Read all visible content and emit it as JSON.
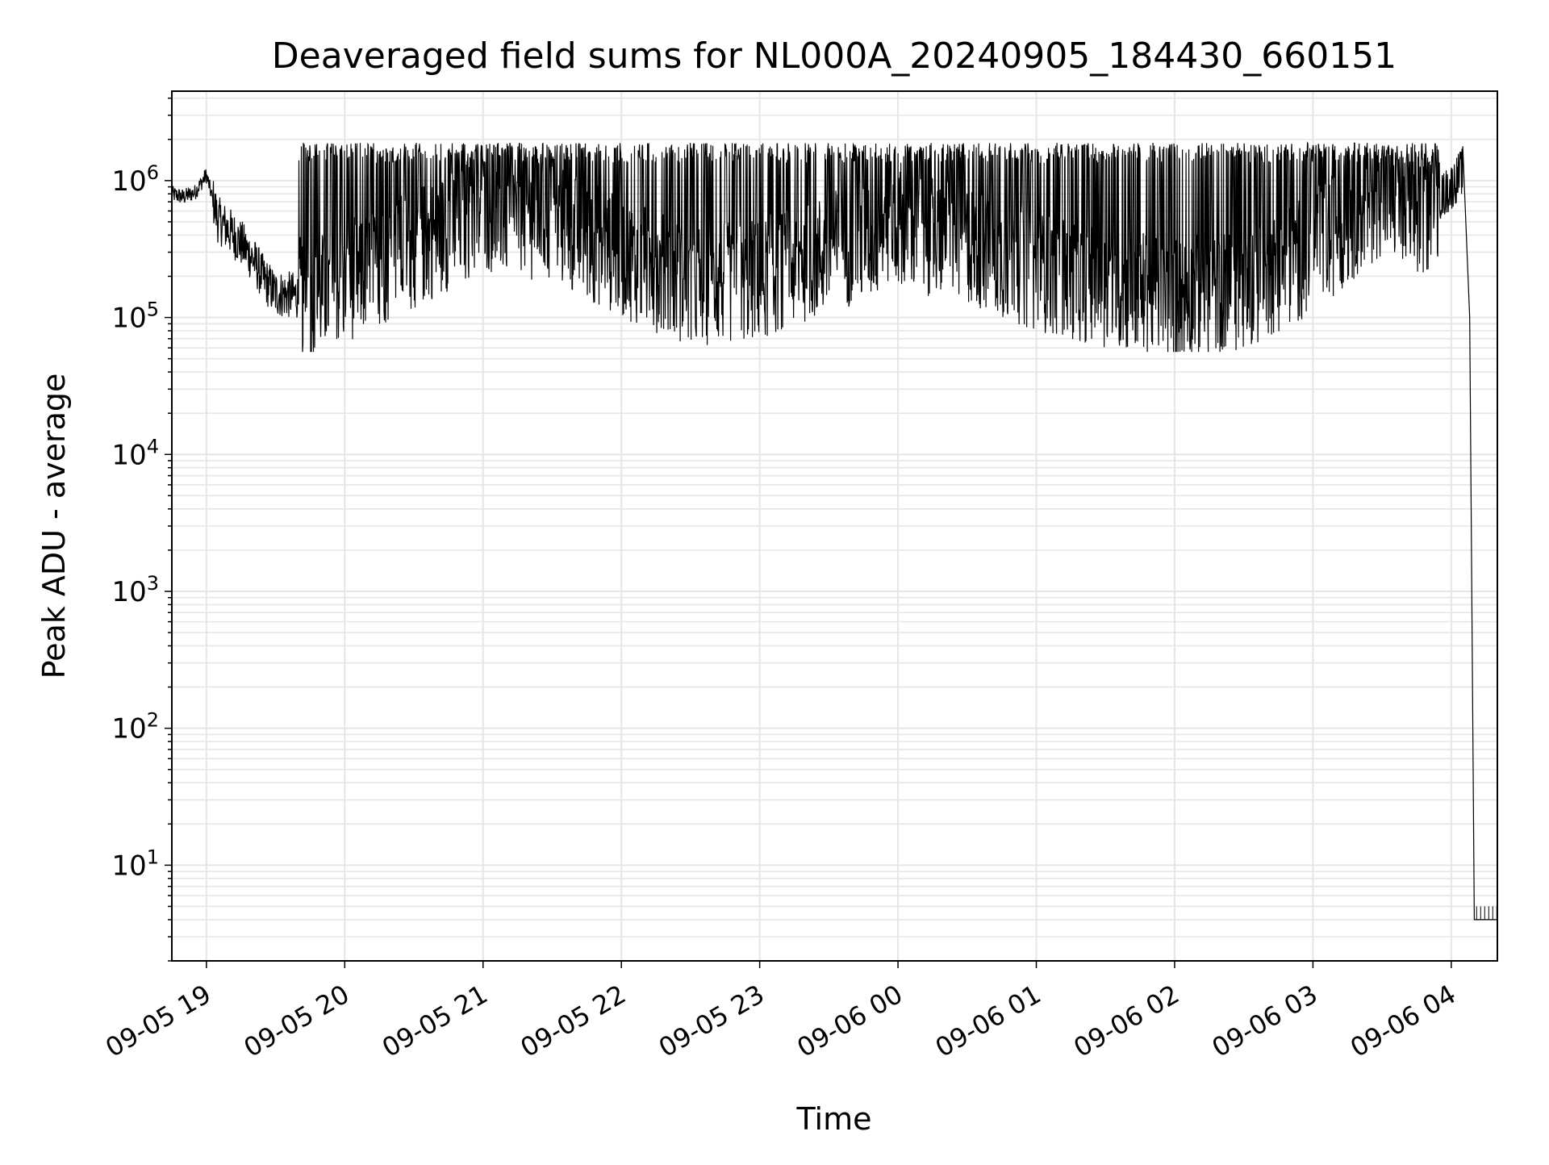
{
  "chart_data": {
    "type": "line",
    "title": "Deaveraged field sums for NL000A_20240905_184430_660151",
    "xlabel": "Time",
    "ylabel": "Peak ADU - average",
    "yscale": "log",
    "ylim": [
      2,
      4500000
    ],
    "xlim": [
      "2024-09-05 18:45",
      "2024-09-06 04:20"
    ],
    "grid": "major and minor, light gray",
    "legend": "none",
    "line_color": "#000000",
    "x_ticks": [
      "09-05 19",
      "09-05 20",
      "09-05 21",
      "09-05 22",
      "09-05 23",
      "09-06 00",
      "09-06 01",
      "09-06 02",
      "09-06 03",
      "09-06 04"
    ],
    "y_ticks": [
      {
        "value": 10,
        "base": "10",
        "exp": "1"
      },
      {
        "value": 100,
        "base": "10",
        "exp": "2"
      },
      {
        "value": 1000,
        "base": "10",
        "exp": "3"
      },
      {
        "value": 10000,
        "base": "10",
        "exp": "4"
      },
      {
        "value": 100000,
        "base": "10",
        "exp": "5"
      },
      {
        "value": 1000000,
        "base": "10",
        "exp": "6"
      }
    ],
    "series": [
      {
        "style": "dense noisy trace (approximated envelope points)",
        "points": [
          [
            "2024-09-05 18:45",
            800000
          ],
          [
            "2024-09-05 18:50",
            760000
          ],
          [
            "2024-09-05 18:55",
            820000
          ],
          [
            "2024-09-05 19:00",
            1100000
          ],
          [
            "2024-09-05 19:05",
            520000
          ],
          [
            "2024-09-05 19:10",
            430000
          ],
          [
            "2024-09-05 19:15",
            350000
          ],
          [
            "2024-09-05 19:20",
            270000
          ],
          [
            "2024-09-05 19:25",
            190000
          ],
          [
            "2024-09-05 19:30",
            150000
          ],
          [
            "2024-09-05 19:45",
            140000
          ],
          [
            "2024-09-05 20:00",
            180000
          ],
          [
            "2024-09-05 20:30",
            320000
          ],
          [
            "2024-09-05 21:00",
            600000
          ],
          [
            "2024-09-05 21:30",
            500000
          ],
          [
            "2024-09-05 22:00",
            280000
          ],
          [
            "2024-09-05 22:30",
            170000
          ],
          [
            "2024-09-05 23:00",
            190000
          ],
          [
            "2024-09-05 23:30",
            300000
          ],
          [
            "2024-09-06 00:00",
            450000
          ],
          [
            "2024-09-06 00:30",
            350000
          ],
          [
            "2024-09-06 01:00",
            220000
          ],
          [
            "2024-09-06 01:30",
            170000
          ],
          [
            "2024-09-06 02:00",
            140000
          ],
          [
            "2024-09-06 02:30",
            160000
          ],
          [
            "2024-09-06 03:00",
            300000
          ],
          [
            "2024-09-06 03:30",
            800000
          ],
          [
            "2024-09-06 03:45",
            500000
          ],
          [
            "2024-09-06 04:00",
            900000
          ],
          [
            "2024-09-06 04:05",
            1200000
          ],
          [
            "2024-09-06 04:08",
            200000
          ],
          [
            "2024-09-06 04:10",
            4
          ],
          [
            "2024-09-06 04:20",
            4
          ]
        ],
        "peak_envelope": 1800000,
        "trough_envelope": 80000
      }
    ]
  }
}
